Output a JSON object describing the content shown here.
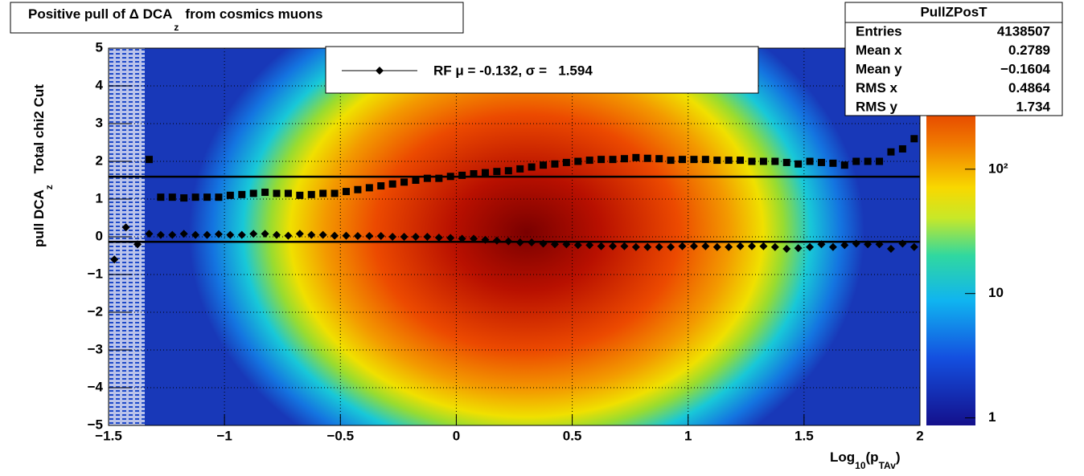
{
  "chart_data": {
    "type": "hist2d",
    "title": [
      "Positive pull of Δ DCA",
      "z",
      "from cosmics muons"
    ],
    "ylabel": [
      "pull DCA",
      "z",
      "Total chi2 Cut"
    ],
    "xlabel": [
      "Log",
      "10",
      "(p",
      "TAv",
      ")"
    ],
    "xlim": [
      -1.5,
      2
    ],
    "ylim": [
      -5,
      5
    ],
    "xticks": [
      {
        "value": -1.5,
        "label": "−1.5"
      },
      {
        "value": -1,
        "label": "−1"
      },
      {
        "value": -0.5,
        "label": "−0.5"
      },
      0,
      0.5,
      1,
      1.5,
      2
    ],
    "yticks": [
      {
        "value": -5,
        "label": "−5"
      },
      {
        "value": -4,
        "label": "−4"
      },
      {
        "value": -3,
        "label": "−3"
      },
      {
        "value": -2,
        "label": "−2"
      },
      {
        "value": -1,
        "label": "−1"
      },
      0,
      1,
      2,
      3,
      4,
      5
    ],
    "grid": true,
    "zlim": [
      0.87,
      940
    ],
    "zscale": "log",
    "zticks": [
      1,
      10,
      {
        "value": 100,
        "label": "10²"
      }
    ],
    "series": [
      {
        "name": "RF μ = -0.132, σ =   1.594",
        "marker": "diamond",
        "color": "#000000",
        "x": [
          -1.475,
          -1.425,
          -1.375,
          -1.325,
          -1.275,
          -1.225,
          -1.175,
          -1.125,
          -1.075,
          -1.025,
          -0.975,
          -0.925,
          -0.875,
          -0.825,
          -0.775,
          -0.725,
          -0.675,
          -0.625,
          -0.575,
          -0.525,
          -0.475,
          -0.425,
          -0.375,
          -0.325,
          -0.275,
          -0.225,
          -0.175,
          -0.125,
          -0.075,
          -0.025,
          0.025,
          0.075,
          0.125,
          0.175,
          0.225,
          0.275,
          0.325,
          0.375,
          0.425,
          0.475,
          0.525,
          0.575,
          0.625,
          0.675,
          0.725,
          0.775,
          0.825,
          0.875,
          0.925,
          0.975,
          1.025,
          1.075,
          1.125,
          1.175,
          1.225,
          1.275,
          1.325,
          1.375,
          1.425,
          1.475,
          1.525,
          1.575,
          1.625,
          1.675,
          1.725,
          1.775,
          1.825,
          1.875,
          1.925,
          1.975
        ],
        "values": [
          -0.6,
          0.25,
          -0.2,
          0.08,
          0.05,
          0.05,
          0.08,
          0.05,
          0.05,
          0.07,
          0.05,
          0.05,
          0.08,
          0.08,
          0.05,
          0.03,
          0.08,
          0.05,
          0.05,
          0.03,
          0.03,
          0.02,
          0.02,
          0.02,
          0,
          0,
          0,
          0,
          -0.02,
          -0.03,
          -0.05,
          -0.05,
          -0.08,
          -0.1,
          -0.12,
          -0.15,
          -0.15,
          -0.18,
          -0.2,
          -0.2,
          -0.22,
          -0.22,
          -0.25,
          -0.25,
          -0.25,
          -0.27,
          -0.27,
          -0.27,
          -0.27,
          -0.25,
          -0.25,
          -0.25,
          -0.27,
          -0.27,
          -0.25,
          -0.25,
          -0.25,
          -0.27,
          -0.32,
          -0.3,
          -0.27,
          -0.2,
          -0.27,
          -0.22,
          -0.18,
          -0.2,
          -0.2,
          -0.32,
          -0.18,
          -0.27
        ]
      },
      {
        "marker": "square",
        "color": "#000000",
        "x": [
          -1.325,
          -1.275,
          -1.225,
          -1.175,
          -1.125,
          -1.075,
          -1.025,
          -0.975,
          -0.925,
          -0.875,
          -0.825,
          -0.775,
          -0.725,
          -0.675,
          -0.625,
          -0.575,
          -0.525,
          -0.475,
          -0.425,
          -0.375,
          -0.325,
          -0.275,
          -0.225,
          -0.175,
          -0.125,
          -0.075,
          -0.025,
          0.025,
          0.075,
          0.125,
          0.175,
          0.225,
          0.275,
          0.325,
          0.375,
          0.425,
          0.475,
          0.525,
          0.575,
          0.625,
          0.675,
          0.725,
          0.775,
          0.825,
          0.875,
          0.925,
          0.975,
          1.025,
          1.075,
          1.125,
          1.175,
          1.225,
          1.275,
          1.325,
          1.375,
          1.425,
          1.475,
          1.525,
          1.575,
          1.625,
          1.675,
          1.725,
          1.775,
          1.825,
          1.875,
          1.925,
          1.975
        ],
        "values": [
          2.05,
          1.05,
          1.05,
          1.03,
          1.05,
          1.05,
          1.05,
          1.1,
          1.12,
          1.15,
          1.18,
          1.15,
          1.15,
          1.1,
          1.12,
          1.15,
          1.15,
          1.2,
          1.25,
          1.3,
          1.35,
          1.4,
          1.45,
          1.5,
          1.55,
          1.55,
          1.6,
          1.63,
          1.67,
          1.7,
          1.73,
          1.75,
          1.8,
          1.85,
          1.9,
          1.93,
          1.97,
          2.0,
          2.03,
          2.05,
          2.05,
          2.07,
          2.1,
          2.08,
          2.07,
          2.03,
          2.05,
          2.05,
          2.05,
          2.03,
          2.03,
          2.03,
          2.0,
          2.0,
          2.0,
          1.97,
          1.93,
          2.0,
          1.97,
          1.95,
          1.9,
          2.0,
          2.0,
          2.0,
          2.25,
          2.33,
          2.6
        ]
      }
    ],
    "hlines": [
      1.594,
      -0.132
    ],
    "stats": {
      "title": "PullZPosT",
      "rows": [
        [
          "Entries",
          "4138507"
        ],
        [
          "Mean x",
          "0.2789"
        ],
        [
          "Mean y",
          "−0.1604"
        ],
        [
          "RMS x",
          "0.4864"
        ],
        [
          "RMS y",
          "1.734"
        ]
      ]
    }
  }
}
